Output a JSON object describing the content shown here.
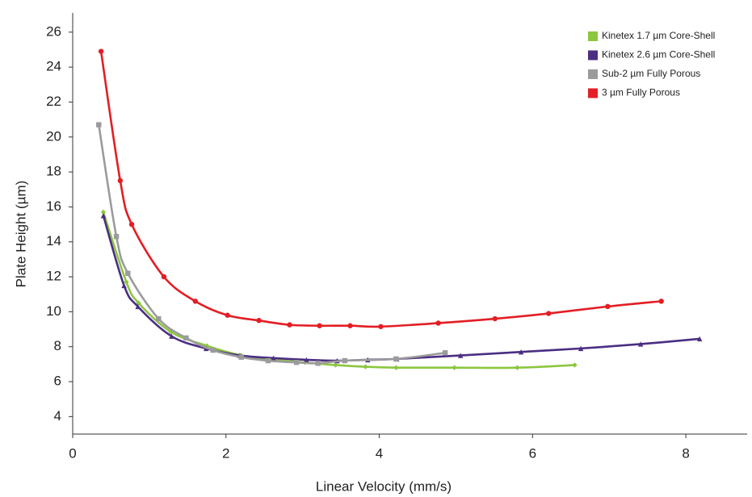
{
  "chart_data": {
    "type": "scatter-curve",
    "x_label": "Linear Velocity (mm/s)",
    "y_label": "Plate Height (µm)",
    "xlim": [
      0,
      8.8
    ],
    "ylim": [
      3,
      27.1
    ],
    "xticks": [
      0,
      2,
      4,
      6,
      8
    ],
    "yticks": [
      4,
      6,
      8,
      10,
      12,
      14,
      16,
      18,
      20,
      22,
      24,
      26
    ],
    "grid": false,
    "legend": "top-right",
    "series": [
      {
        "name": "Kinetex 1.7 µm Core-Shell",
        "color": "#8dc63f",
        "marker": "diamond",
        "x": [
          0.4,
          0.7,
          0.86,
          1.28,
          1.75,
          2.2,
          2.62,
          3.03,
          3.43,
          3.82,
          4.22,
          4.98,
          5.8,
          6.55
        ],
        "values": [
          15.7,
          11.7,
          10.5,
          8.85,
          8.05,
          7.5,
          7.25,
          7.1,
          6.95,
          6.85,
          6.8,
          6.8,
          6.8,
          6.95
        ]
      },
      {
        "name": "Kinetex 2.6 µm Core-Shell",
        "color": "#4b2e83",
        "marker": "triangle",
        "x": [
          0.4,
          0.67,
          0.85,
          1.29,
          1.74,
          2.18,
          2.62,
          3.05,
          3.45,
          3.85,
          4.23,
          5.06,
          5.85,
          6.63,
          7.41,
          8.18
        ],
        "values": [
          15.5,
          11.5,
          10.3,
          8.6,
          7.9,
          7.5,
          7.35,
          7.25,
          7.2,
          7.25,
          7.3,
          7.5,
          7.7,
          7.9,
          8.15,
          8.45
        ]
      },
      {
        "name": "Sub-2 µm Fully Porous",
        "color": "#9b9b9b",
        "marker": "square",
        "x": [
          0.34,
          0.57,
          0.72,
          1.12,
          1.48,
          1.83,
          2.2,
          2.55,
          2.92,
          3.2,
          3.55,
          4.22,
          4.86
        ],
        "values": [
          20.7,
          14.3,
          12.2,
          9.6,
          8.5,
          7.8,
          7.4,
          7.2,
          7.1,
          7.05,
          7.2,
          7.3,
          7.65
        ]
      },
      {
        "name": "3 µm Fully Porous",
        "color": "#e31e24",
        "marker": "circle",
        "x": [
          0.37,
          0.62,
          0.77,
          1.19,
          1.6,
          2.02,
          2.43,
          2.83,
          3.22,
          3.62,
          4.02,
          4.77,
          5.51,
          6.21,
          6.98,
          7.68
        ],
        "values": [
          24.9,
          17.5,
          15.0,
          12.0,
          10.6,
          9.8,
          9.5,
          9.25,
          9.2,
          9.2,
          9.15,
          9.35,
          9.6,
          9.9,
          10.3,
          10.6
        ]
      }
    ]
  }
}
